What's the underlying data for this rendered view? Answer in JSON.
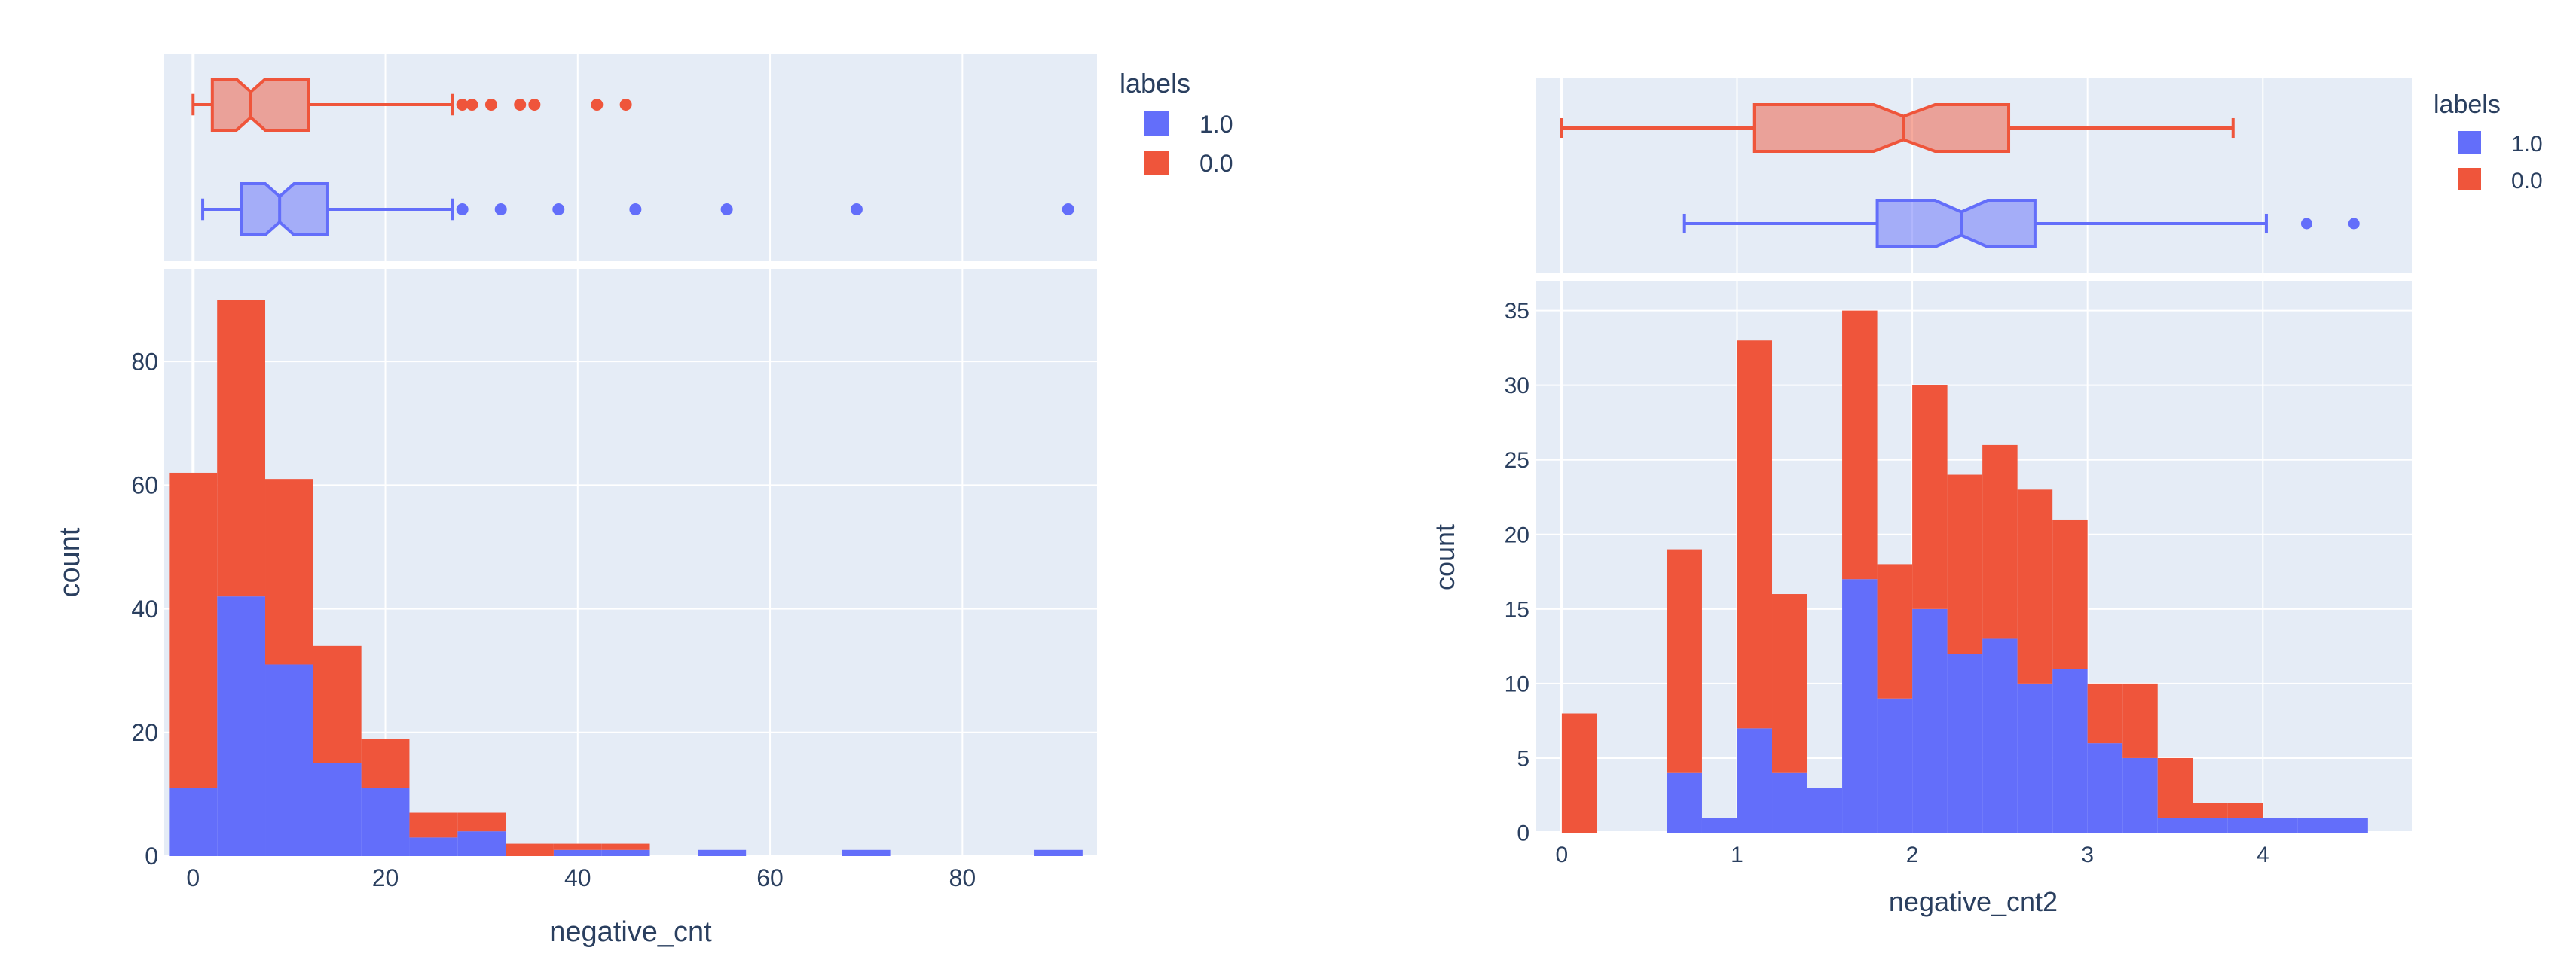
{
  "colors": {
    "plot_bg": "#e5ecf6",
    "grid": "#ffffff",
    "text": "#2a3f5f",
    "series_1": "#636efa",
    "series_0": "#ef553b"
  },
  "chart_data": [
    {
      "type": "bar",
      "subtype": "stacked histogram with marginal box plot",
      "xlabel": "negative_cnt",
      "ylabel": "count",
      "xlim": [
        -3,
        94
      ],
      "ylim": [
        0,
        95
      ],
      "x_ticks": [
        0,
        20,
        40,
        60,
        80
      ],
      "y_ticks": [
        0,
        20,
        40,
        60,
        80
      ],
      "grid": true,
      "legend": {
        "title": "labels",
        "placement": "top-right",
        "entries": [
          "1.0",
          "0.0"
        ]
      },
      "bin_edges": [
        -2.5,
        2.5,
        7.5,
        12.5,
        17.5,
        22.5,
        27.5,
        32.5,
        37.5,
        42.5,
        47.5,
        52.5,
        57.5,
        62.5,
        67.5,
        72.5,
        77.5,
        82.5,
        87.5,
        92.5
      ],
      "series": [
        {
          "name": "1.0",
          "color": "#636efa",
          "values": [
            11,
            42,
            31,
            15,
            11,
            3,
            4,
            0,
            1,
            1,
            0,
            1,
            0,
            0,
            1,
            0,
            0,
            0,
            1
          ]
        },
        {
          "name": "0.0",
          "color": "#ef553b",
          "values": [
            51,
            48,
            30,
            19,
            8,
            4,
            3,
            2,
            1,
            1,
            0,
            0,
            0,
            0,
            0,
            0,
            0,
            0,
            0
          ]
        }
      ],
      "box": [
        {
          "name": "0.0",
          "color": "#ef553b",
          "lower_fence": 0,
          "q1": 2,
          "median": 6,
          "q3": 12,
          "upper_fence": 27,
          "notch_low": 4.5,
          "notch_high": 7.5,
          "outliers": [
            28,
            29,
            31,
            34,
            35.5,
            42,
            45
          ]
        },
        {
          "name": "1.0",
          "color": "#636efa",
          "lower_fence": 1,
          "q1": 5,
          "median": 9,
          "q3": 14,
          "upper_fence": 27,
          "notch_low": 7.5,
          "notch_high": 10.5,
          "outliers": [
            28,
            32,
            38,
            46,
            55.5,
            69,
            91
          ]
        }
      ]
    },
    {
      "type": "bar",
      "subtype": "stacked histogram with marginal box plot",
      "xlabel": "negative_cnt2",
      "ylabel": "count",
      "xlim": [
        -0.15,
        4.85
      ],
      "ylim": [
        0,
        37
      ],
      "x_ticks": [
        0,
        1,
        2,
        3,
        4
      ],
      "y_ticks": [
        0,
        5,
        10,
        15,
        20,
        25,
        30,
        35
      ],
      "grid": true,
      "legend": {
        "title": "labels",
        "placement": "top-right",
        "entries": [
          "1.0",
          "0.0"
        ]
      },
      "bin_edges": [
        0,
        0.2,
        0.4,
        0.6,
        0.8,
        1.0,
        1.2,
        1.4,
        1.6,
        1.8,
        2.0,
        2.2,
        2.4,
        2.6,
        2.8,
        3.0,
        3.2,
        3.4,
        3.6,
        3.8,
        4.0,
        4.2,
        4.4,
        4.6
      ],
      "series": [
        {
          "name": "1.0",
          "color": "#636efa",
          "values": [
            0,
            0,
            0,
            4,
            1,
            7,
            4,
            3,
            17,
            9,
            15,
            12,
            13,
            10,
            11,
            6,
            5,
            1,
            1,
            1,
            1,
            1,
            1
          ]
        },
        {
          "name": "0.0",
          "color": "#ef553b",
          "values": [
            8,
            0,
            0,
            15,
            0,
            26,
            12,
            0,
            18,
            9,
            15,
            12,
            13,
            13,
            10,
            4,
            5,
            4,
            1,
            1,
            0,
            0,
            0
          ]
        }
      ],
      "box": [
        {
          "name": "0.0",
          "color": "#ef553b",
          "lower_fence": 0,
          "q1": 1.1,
          "median": 1.95,
          "q3": 2.55,
          "upper_fence": 3.83,
          "notch_low": 1.78,
          "notch_high": 2.13,
          "outliers": []
        },
        {
          "name": "1.0",
          "color": "#636efa",
          "lower_fence": 0.7,
          "q1": 1.8,
          "median": 2.28,
          "q3": 2.7,
          "upper_fence": 4.02,
          "notch_low": 2.13,
          "notch_high": 2.43,
          "outliers": [
            4.25,
            4.52
          ]
        }
      ]
    }
  ]
}
